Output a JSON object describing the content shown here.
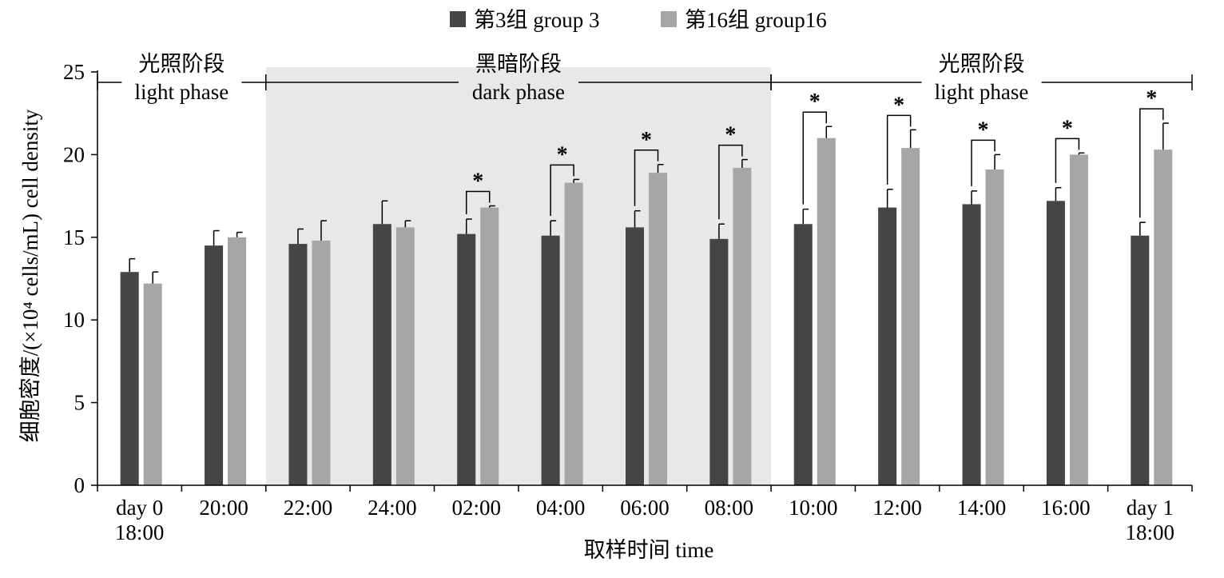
{
  "chart_data": {
    "type": "bar",
    "legend": [
      {
        "label": "第3组 group 3",
        "color": "#454545"
      },
      {
        "label": "第16组 group16",
        "color": "#a6a6a6"
      }
    ],
    "legend_position": "top-center",
    "ylabel": "细胞密度/(×10⁴ cells/mL) cell density",
    "xlabel": "取样时间 time",
    "ylim": [
      0,
      25
    ],
    "yticks": [
      "0",
      "5",
      "10",
      "15",
      "20",
      "25"
    ],
    "categories": [
      [
        "day 0",
        "18:00"
      ],
      [
        "20:00"
      ],
      [
        "22:00"
      ],
      [
        "24:00"
      ],
      [
        "02:00"
      ],
      [
        "04:00"
      ],
      [
        "06:00"
      ],
      [
        "08:00"
      ],
      [
        "10:00"
      ],
      [
        "12:00"
      ],
      [
        "14:00"
      ],
      [
        "16:00"
      ],
      [
        "day 1",
        "18:00"
      ]
    ],
    "series": [
      {
        "name": "第3组 group 3",
        "color": "#454545",
        "values": [
          12.9,
          14.5,
          14.6,
          15.8,
          15.2,
          15.1,
          15.6,
          14.9,
          15.8,
          16.8,
          17.0,
          17.2,
          15.1
        ],
        "errors": [
          0.8,
          0.9,
          0.9,
          1.4,
          0.9,
          0.9,
          1.0,
          0.9,
          0.9,
          1.1,
          0.8,
          0.8,
          0.8
        ]
      },
      {
        "name": "第16组 group16",
        "color": "#a6a6a6",
        "values": [
          12.2,
          15.0,
          14.8,
          15.6,
          16.8,
          18.3,
          18.9,
          19.2,
          21.0,
          20.4,
          19.1,
          20.0,
          20.3
        ],
        "errors": [
          0.7,
          0.3,
          1.2,
          0.4,
          0.1,
          0.2,
          0.5,
          0.5,
          0.7,
          1.1,
          0.9,
          0.1,
          1.6
        ]
      }
    ],
    "significance": [
      false,
      false,
      false,
      false,
      true,
      true,
      true,
      true,
      true,
      true,
      true,
      true,
      true
    ],
    "significance_marker": "*",
    "phases": [
      {
        "label_cn": "光照阶段",
        "label_en": "light phase",
        "start_index": 0,
        "end_index": 1,
        "shaded": false
      },
      {
        "label_cn": "黑暗阶段",
        "label_en": "dark phase",
        "start_index": 2,
        "end_index": 7,
        "shaded": true
      },
      {
        "label_cn": "光照阶段",
        "label_en": "light phase",
        "start_index": 8,
        "end_index": 12,
        "shaded": false
      }
    ],
    "shade_color": "#e8e8e8",
    "grid": false
  }
}
